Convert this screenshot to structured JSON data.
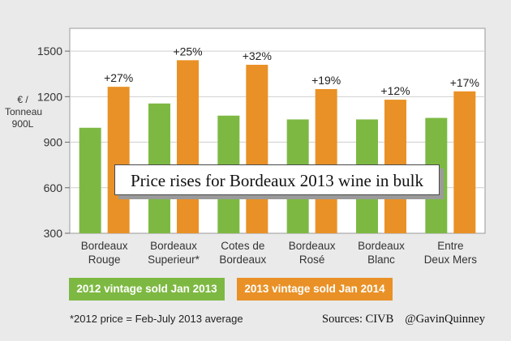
{
  "chart_data": {
    "type": "bar",
    "title": "Price rises for Bordeaux 2013 wine in bulk",
    "ylabel": [
      "€ /",
      "Tonneau",
      "900L"
    ],
    "ylim": [
      300,
      1650
    ],
    "yticks": [
      300,
      600,
      900,
      1200,
      1500
    ],
    "categories": [
      [
        "Bordeaux",
        "Rouge"
      ],
      [
        "Bordeaux",
        "Superieur*"
      ],
      [
        "Cotes de",
        "Bordeaux"
      ],
      [
        "Bordeaux",
        "Rosé"
      ],
      [
        "Bordeaux",
        "Blanc"
      ],
      [
        "Entre",
        "Deux Mers"
      ]
    ],
    "series": [
      {
        "name": "2012 vintage sold Jan 2013",
        "color": "#7db942",
        "values": [
          995,
          1155,
          1075,
          1050,
          1050,
          1060
        ]
      },
      {
        "name": "2013 vintage sold Jan 2014",
        "color": "#e99126",
        "values": [
          1265,
          1440,
          1410,
          1250,
          1180,
          1235
        ]
      }
    ],
    "annotations": [
      "+27%",
      "+25%",
      "+32%",
      "+19%",
      "+12%",
      "+17%"
    ],
    "grid": true
  },
  "footer": {
    "footnote": "*2012 price = Feb-July 2013 average",
    "sources": "Sources: CIVB",
    "handle": "@GavinQuinney"
  }
}
